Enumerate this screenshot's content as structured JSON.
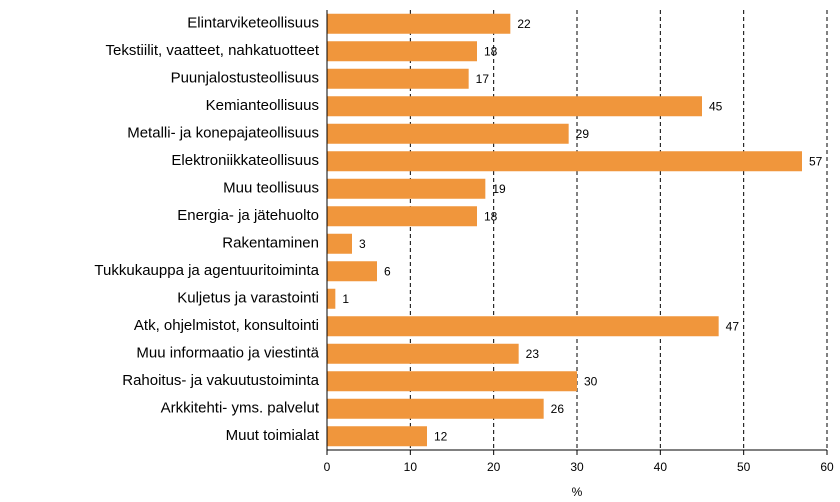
{
  "chart_data": {
    "type": "bar",
    "orientation": "horizontal",
    "categories": [
      "Elintarviketeollisuus",
      "Tekstiilit, vaatteet, nahkatuotteet",
      "Puunjalostusteollisuus",
      "Kemianteollisuus",
      "Metalli- ja konepajateollisuus",
      "Elektroniikkateollisuus",
      "Muu teollisuus",
      "Energia- ja jätehuolto",
      "Rakentaminen",
      "Tukkukauppa ja agentuuritoiminta",
      "Kuljetus ja varastointi",
      "Atk, ohjelmistot, konsultointi",
      "Muu informaatio ja viestintä",
      "Rahoitus- ja vakuutustoiminta",
      "Arkkitehti- yms. palvelut",
      "Muut toimialat"
    ],
    "values": [
      22,
      18,
      17,
      45,
      29,
      57,
      19,
      18,
      3,
      6,
      1,
      47,
      23,
      30,
      26,
      12
    ],
    "color": "#f0963c",
    "xlabel": "%",
    "xlim": [
      0,
      60
    ],
    "xticks": [
      0,
      10,
      20,
      30,
      40,
      50,
      60
    ],
    "grid": true
  }
}
